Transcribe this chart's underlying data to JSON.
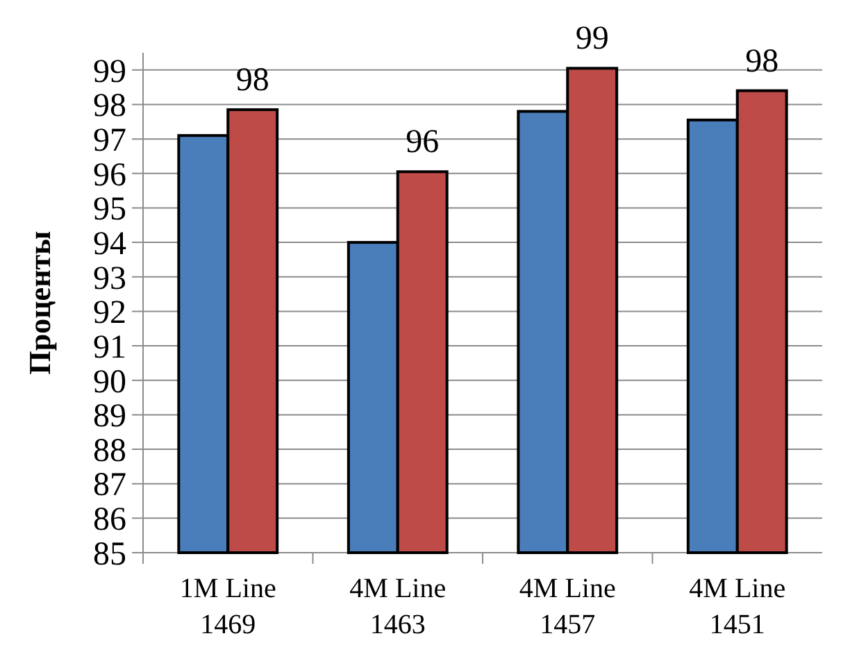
{
  "chart_data": {
    "type": "bar",
    "ylabel": "Проценты",
    "categories": [
      "1M Line 1469",
      "4M Line 1463",
      "4M Line 1457",
      "4M Line 1451"
    ],
    "series": [
      {
        "color": "#4a7ebb",
        "values": [
          97.1,
          94.0,
          97.8,
          97.55
        ]
      },
      {
        "color": "#be4b48",
        "values": [
          97.85,
          96.05,
          99.05,
          98.4
        ],
        "value_labels": [
          "98",
          "96",
          "99",
          "98"
        ]
      }
    ],
    "ylim": [
      85,
      99.5
    ],
    "yticks": [
      85,
      86,
      87,
      88,
      89,
      90,
      91,
      92,
      93,
      94,
      95,
      96,
      97,
      98,
      99
    ],
    "grid": "y"
  }
}
